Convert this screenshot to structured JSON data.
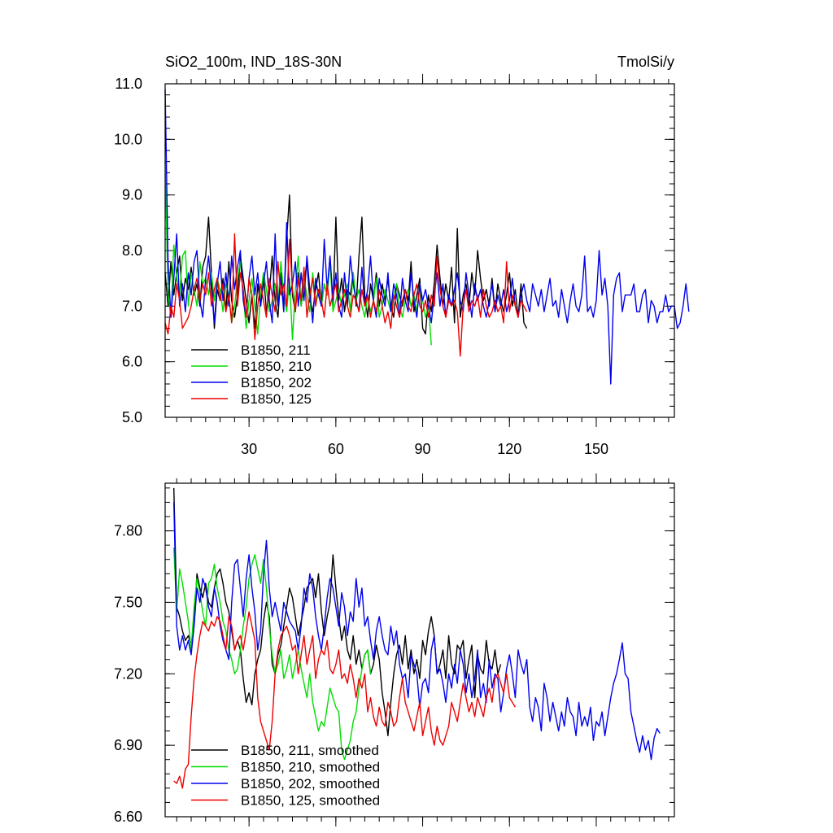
{
  "chart_data": [
    {
      "type": "line",
      "title": "SiO2_100m, IND_18S-30N",
      "units": "TmolSi/y",
      "xlim": [
        1,
        177
      ],
      "ylim": [
        5.0,
        11.0
      ],
      "xticks": [
        30,
        60,
        90,
        120,
        150
      ],
      "xtick_labels": [
        "30",
        "60",
        "90",
        "120",
        "150"
      ],
      "yticks": [
        5.0,
        6.0,
        7.0,
        8.0,
        9.0,
        10.0,
        11.0
      ],
      "ytick_labels": [
        "5.0",
        "6.0",
        "7.0",
        "8.0",
        "9.0",
        "10.0",
        "11.0"
      ],
      "legend": [
        "B1850, 211",
        "B1850, 210",
        "B1850, 202",
        "B1850, 125"
      ],
      "series": [
        {
          "name": "B1850, 211",
          "color": "#000000",
          "x_start": 1,
          "values": [
            7.6,
            7.0,
            7.8,
            7.2,
            7.6,
            7.9,
            7.1,
            7.5,
            7.3,
            7.7,
            7.2,
            7.4,
            7.0,
            7.7,
            7.9,
            8.6,
            7.6,
            6.6,
            7.3,
            7.1,
            7.5,
            6.9,
            7.8,
            7.1,
            6.8,
            7.2,
            7.9,
            7.5,
            7.1,
            6.7,
            7.2,
            6.6,
            7.4,
            7.0,
            7.6,
            6.9,
            7.2,
            7.9,
            7.1,
            6.8,
            7.6,
            7.0,
            8.2,
            9.0,
            7.2,
            6.9,
            7.6,
            7.0,
            7.4,
            7.8,
            7.1,
            6.9,
            7.3,
            7.6,
            7.0,
            7.4,
            7.2,
            7.9,
            7.0,
            8.6,
            7.1,
            7.5,
            6.9,
            7.3,
            7.2,
            7.6,
            7.0,
            7.9,
            8.6,
            7.2,
            6.8,
            7.4,
            7.1,
            7.6,
            7.0,
            7.4,
            7.1,
            7.5,
            7.0,
            6.8,
            7.4,
            7.2,
            7.0,
            7.3,
            7.1,
            7.8,
            6.9,
            7.2,
            7.5,
            6.6,
            6.5,
            7.2,
            6.9,
            7.4,
            8.1,
            7.5,
            7.0,
            7.4,
            7.1,
            7.7,
            6.7,
            8.4,
            6.8,
            7.2,
            7.4,
            7.0,
            7.6,
            7.2,
            8.0,
            7.5,
            7.1,
            7.3,
            7.0,
            7.5,
            6.9,
            7.4,
            7.1,
            6.9,
            7.2,
            7.6,
            7.0,
            7.3,
            6.8,
            7.4,
            6.7,
            6.6
          ]
        },
        {
          "name": "B1850, 210",
          "color": "#00dd00",
          "x_start": 1,
          "values": [
            9.6,
            7.2,
            6.8,
            8.1,
            7.5,
            7.2,
            7.9,
            8.0,
            7.0,
            7.6,
            7.3,
            7.0,
            7.8,
            7.4,
            7.5,
            7.2,
            7.6,
            7.1,
            7.5,
            7.3,
            6.9,
            7.4,
            7.2,
            6.7,
            7.0,
            7.5,
            7.8,
            7.2,
            6.6,
            7.1,
            7.5,
            7.0,
            6.5,
            7.2,
            7.6,
            7.3,
            6.9,
            7.1,
            7.4,
            7.0,
            7.8,
            7.2,
            6.9,
            7.5,
            6.4,
            7.3,
            7.9,
            7.0,
            7.5,
            7.2,
            6.9,
            7.6,
            7.1,
            7.3,
            7.0,
            7.4,
            7.2,
            7.8,
            6.9,
            7.1,
            7.3,
            7.0,
            7.2,
            7.4,
            6.9,
            7.6,
            7.1,
            7.3,
            7.0,
            6.8,
            7.2,
            6.9,
            7.1,
            7.5,
            6.8,
            7.0,
            7.3,
            7.1,
            6.9,
            7.2,
            7.4,
            7.0,
            6.8,
            7.1,
            7.3,
            7.0,
            7.2,
            6.9,
            7.4,
            7.1,
            6.8,
            7.0,
            6.3
          ]
        },
        {
          "name": "B1850, 202",
          "color": "#0000ee",
          "x_start": 1,
          "values": [
            10.9,
            7.8,
            6.8,
            7.5,
            8.3,
            7.0,
            7.4,
            6.9,
            7.6,
            7.2,
            7.8,
            8.0,
            7.1,
            6.8,
            7.5,
            7.9,
            7.3,
            6.7,
            7.4,
            7.8,
            7.1,
            7.6,
            7.0,
            7.9,
            7.3,
            7.7,
            8.0,
            7.1,
            6.8,
            7.5,
            7.9,
            7.2,
            7.6,
            7.0,
            7.4,
            7.8,
            7.1,
            6.7,
            8.3,
            7.0,
            7.5,
            6.9,
            8.5,
            7.2,
            7.4,
            7.8,
            7.0,
            7.6,
            7.1,
            7.9,
            7.3,
            6.7,
            7.5,
            7.2,
            7.0,
            8.2,
            7.3,
            7.9,
            7.1,
            7.6,
            7.0,
            6.8,
            7.6,
            7.0,
            7.9,
            7.4,
            7.1,
            6.9,
            7.7,
            7.0,
            7.3,
            7.9,
            7.1,
            6.8,
            7.5,
            7.2,
            7.0,
            7.6,
            6.9,
            7.4,
            7.2,
            6.8,
            7.5,
            7.1,
            6.9,
            7.6,
            7.1,
            6.8,
            7.4,
            7.1,
            7.3,
            7.0,
            6.7,
            7.2,
            7.6,
            7.0,
            7.4,
            6.8,
            7.2,
            7.0,
            7.3,
            7.6,
            7.1,
            6.9,
            7.6,
            7.2,
            6.8,
            7.4,
            7.1,
            7.3,
            7.0,
            6.8,
            7.1,
            7.4,
            6.9,
            7.2,
            7.0,
            7.3,
            6.9,
            7.1,
            7.5,
            7.0,
            6.8,
            7.2,
            7.4,
            7.1,
            6.9,
            7.4,
            7.2,
            7.0,
            7.3,
            6.9,
            7.2,
            7.5,
            7.0,
            7.1,
            6.8,
            7.3,
            7.0,
            6.7,
            7.1,
            7.4,
            7.0,
            6.9,
            7.2,
            7.9,
            6.9,
            7.0,
            6.8,
            7.1,
            8.0,
            7.2,
            7.5,
            7.0,
            5.6,
            7.2,
            7.5,
            7.6,
            6.9,
            7.2,
            7.2,
            7.2,
            7.4,
            6.9,
            6.9,
            7.2,
            7.3,
            6.7,
            7.1,
            7.0,
            6.7,
            6.9,
            6.9,
            7.2,
            6.9,
            7.0,
            7.0,
            6.6,
            6.7,
            7.0,
            7.4,
            6.9
          ]
        },
        {
          "name": "B1850, 125",
          "color": "#ee0000",
          "x_start": 1,
          "values": [
            6.7,
            6.5,
            7.0,
            6.8,
            7.4,
            7.1,
            6.6,
            6.7,
            6.8,
            7.0,
            7.3,
            7.5,
            7.1,
            7.4,
            7.2,
            7.6,
            7.0,
            7.3,
            7.5,
            7.1,
            7.4,
            6.9,
            7.2,
            6.7,
            8.3,
            7.0,
            7.6,
            7.3,
            6.8,
            7.5,
            7.2,
            6.4,
            7.0,
            7.4,
            7.1,
            6.8,
            7.5,
            7.2,
            6.9,
            7.8,
            7.2,
            7.4,
            7.0,
            8.2,
            7.3,
            6.9,
            7.5,
            7.1,
            7.7,
            6.8,
            7.2,
            7.5,
            7.0,
            7.3,
            7.1,
            6.8,
            7.4,
            7.0,
            7.2,
            7.4,
            6.9,
            7.1,
            7.3,
            7.0,
            6.8,
            7.2,
            7.1,
            6.9,
            7.3,
            7.0,
            7.2,
            6.8,
            7.1,
            6.9,
            7.3,
            7.0,
            6.7,
            6.9,
            6.6,
            7.2,
            7.0,
            6.8,
            7.1,
            7.3,
            7.0,
            6.9,
            7.2,
            7.4,
            7.0,
            6.9,
            7.1,
            6.8,
            7.2,
            7.0,
            7.9,
            7.3,
            7.0,
            6.8,
            7.1,
            7.0,
            7.1,
            6.9,
            6.1,
            7.0,
            7.3,
            6.9,
            7.1,
            7.0,
            7.2,
            6.8,
            7.3,
            7.0,
            6.8,
            6.9,
            7.1,
            6.9,
            7.0,
            6.7,
            7.8,
            6.9,
            7.2,
            7.0,
            6.8,
            7.1,
            7.0,
            6.9
          ]
        }
      ]
    },
    {
      "type": "line",
      "ylim": [
        6.6,
        8.0
      ],
      "xlim": [
        1,
        177
      ],
      "xticks": [
        30,
        60,
        90,
        120,
        150
      ],
      "yticks": [
        6.6,
        6.9,
        7.2,
        7.5,
        7.8
      ],
      "ytick_labels": [
        "6.60",
        "6.90",
        "7.20",
        "7.50",
        "7.80"
      ],
      "legend": [
        "B1850, 211, smoothed",
        "B1850, 210, smoothed",
        "B1850, 202, smoothed",
        "B1850, 125, smoothed"
      ],
      "series": [
        {
          "name": "B1850, 211, smoothed",
          "color": "#000000",
          "x_start": 4,
          "values": [
            7.98,
            7.48,
            7.44,
            7.38,
            7.34,
            7.36,
            7.32,
            7.42,
            7.62,
            7.56,
            7.52,
            7.58,
            7.5,
            7.48,
            7.56,
            7.62,
            7.64,
            7.58,
            7.5,
            7.46,
            7.38,
            7.3,
            7.34,
            7.3,
            7.18,
            7.08,
            7.12,
            7.07,
            7.2,
            7.26,
            7.3,
            7.42,
            7.5,
            7.44,
            7.24,
            7.2,
            7.28,
            7.32,
            7.4,
            7.48,
            7.56,
            7.52,
            7.44,
            7.36,
            7.42,
            7.48,
            7.56,
            7.58,
            7.6,
            7.52,
            7.62,
            7.46,
            7.36,
            7.44,
            7.5,
            7.7,
            7.56,
            7.44,
            7.34,
            7.4,
            7.3,
            7.26,
            7.36,
            7.24,
            7.3,
            7.22,
            7.28,
            7.3,
            7.2,
            7.24,
            7.32,
            7.26,
            7.12,
            7.04,
            6.94,
            7.08,
            7.2,
            7.28,
            7.32,
            7.24,
            7.36,
            7.22,
            7.3,
            7.2,
            7.26,
            7.18,
            7.34,
            7.28,
            7.38,
            7.44,
            7.36,
            7.2,
            7.24,
            7.3,
            7.18,
            7.36,
            7.24,
            7.2,
            7.32,
            7.3,
            7.34,
            7.18,
            7.26,
            7.32,
            7.1,
            7.28,
            7.22,
            7.2,
            7.34,
            7.24,
            7.22,
            7.3,
            7.2,
            7.24
          ]
        },
        {
          "name": "B1850, 210, smoothed",
          "color": "#00dd00",
          "x_start": 4,
          "values": [
            7.73,
            7.46,
            7.64,
            7.58,
            7.5,
            7.42,
            7.3,
            7.48,
            7.6,
            7.54,
            7.46,
            7.4,
            7.58,
            7.6,
            7.66,
            7.56,
            7.5,
            7.42,
            7.38,
            7.3,
            7.26,
            7.2,
            7.22,
            7.3,
            7.4,
            7.48,
            7.6,
            7.66,
            7.7,
            7.64,
            7.58,
            7.68,
            7.56,
            7.4,
            7.28,
            7.2,
            7.24,
            7.3,
            7.18,
            7.22,
            7.28,
            7.18,
            7.24,
            7.3,
            7.22,
            7.16,
            7.1,
            7.2,
            7.08,
            7.02,
            6.96,
            7.0,
            6.98,
            7.06,
            7.14,
            7.1,
            7.06,
            7.04,
            6.88,
            6.84,
            6.88,
            6.92,
            7.0,
            7.04,
            7.14,
            7.22,
            7.28,
            7.3,
            7.2
          ]
        },
        {
          "name": "B1850, 202, smoothed",
          "color": "#0000ee",
          "x_start": 4,
          "values": [
            7.92,
            7.4,
            7.3,
            7.36,
            7.3,
            7.34,
            7.28,
            7.4,
            7.56,
            7.5,
            7.6,
            7.56,
            7.48,
            7.44,
            7.56,
            7.5,
            7.4,
            7.34,
            7.3,
            7.26,
            7.5,
            7.66,
            7.68,
            7.56,
            7.44,
            7.6,
            7.7,
            7.56,
            7.46,
            7.3,
            7.38,
            7.62,
            7.76,
            7.56,
            7.44,
            7.5,
            7.44,
            7.38,
            7.5,
            7.46,
            7.42,
            7.4,
            7.38,
            7.3,
            7.4,
            7.56,
            7.5,
            7.62,
            7.56,
            7.44,
            7.36,
            7.3,
            7.4,
            7.52,
            7.6,
            7.56,
            7.48,
            7.4,
            7.54,
            7.48,
            7.36,
            7.46,
            7.42,
            7.6,
            7.48,
            7.56,
            7.4,
            7.44,
            7.34,
            7.26,
            7.38,
            7.44,
            7.36,
            7.3,
            7.28,
            7.4,
            7.32,
            7.38,
            7.24,
            7.18,
            7.2,
            7.1,
            7.28,
            7.24,
            7.2,
            7.06,
            7.16,
            7.18,
            7.12,
            7.3,
            7.36,
            7.2,
            7.22,
            7.16,
            7.08,
            7.2,
            7.14,
            7.24,
            7.16,
            7.3,
            7.24,
            7.12,
            7.2,
            7.1,
            7.18,
            7.3,
            7.1,
            7.16,
            7.08,
            7.26,
            7.14,
            7.2,
            7.18,
            7.04,
            7.12,
            7.22,
            7.28,
            7.2,
            7.1,
            7.3,
            7.24,
            7.2,
            7.26,
            7.06,
            7.0,
            7.1,
            7.06,
            6.96,
            7.16,
            7.1,
            7.0,
            7.08,
            7.02,
            6.96,
            7.04,
            6.98,
            7.1,
            7.04,
            7.02,
            6.94,
            7.08,
            6.98,
            7.02,
            6.98,
            7.06,
            6.92,
            7.0,
            6.98,
            7.04,
            6.94,
            7.02,
            7.1,
            7.16,
            7.2,
            7.26,
            7.33,
            7.2,
            7.18,
            7.04,
            6.98,
            6.92,
            6.87,
            6.94,
            6.88,
            6.92,
            6.84,
            6.93,
            6.97,
            6.95
          ]
        },
        {
          "name": "B1850, 125, smoothed",
          "color": "#ee0000",
          "x_start": 4,
          "values": [
            6.75,
            6.74,
            6.77,
            6.72,
            6.8,
            6.82,
            7.02,
            7.18,
            7.28,
            7.36,
            7.42,
            7.4,
            7.38,
            7.42,
            7.4,
            7.44,
            7.42,
            7.36,
            7.3,
            7.44,
            7.4,
            7.3,
            7.34,
            7.36,
            7.3,
            7.38,
            7.46,
            7.4,
            7.34,
            7.1,
            7.0,
            6.96,
            6.92,
            6.88,
            7.0,
            7.2,
            7.3,
            7.36,
            7.38,
            7.4,
            7.36,
            7.3,
            7.32,
            7.2,
            7.28,
            7.36,
            7.24,
            7.3,
            7.36,
            7.18,
            7.26,
            7.3,
            7.28,
            7.34,
            7.22,
            7.2,
            7.24,
            7.3,
            7.18,
            7.2,
            7.16,
            7.24,
            7.18,
            7.1,
            7.18,
            7.14,
            7.2,
            7.04,
            7.1,
            7.02,
            6.98,
            7.06,
            7.0,
            6.98,
            7.08,
            7.04,
            6.98,
            7.0,
            7.1,
            7.18,
            7.08,
            7.04,
            7.0,
            6.96,
            7.02,
            7.08,
            6.94,
            7.0,
            7.06,
            6.96,
            6.9,
            6.98,
            6.92,
            6.9,
            6.94,
            6.98,
            7.08,
            7.04,
            7.0,
            7.08,
            7.16,
            7.1,
            7.04,
            7.08,
            7.02,
            7.1,
            7.06,
            7.02,
            7.1,
            7.14,
            7.08,
            7.18,
            7.2,
            7.16,
            7.12,
            7.2,
            7.1,
            7.08,
            7.06
          ]
        }
      ]
    }
  ]
}
